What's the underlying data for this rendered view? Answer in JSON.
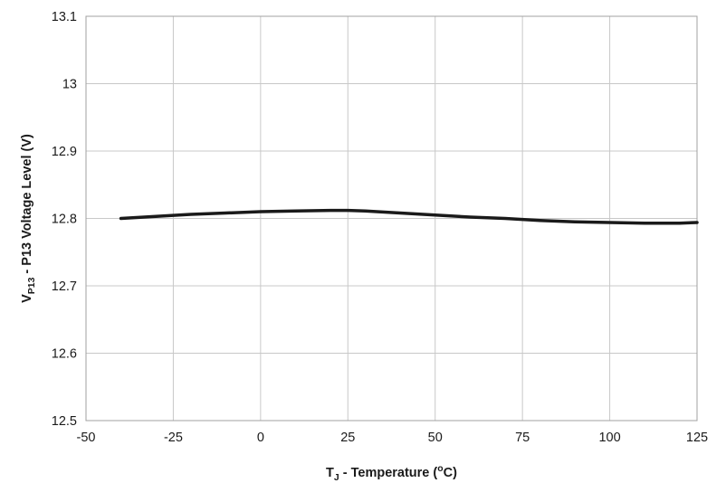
{
  "chart_data": {
    "type": "line",
    "title": "",
    "xlabel": "TJ - Temperature (oC)",
    "ylabel": "VP13 - P13 Voltage Level (V)",
    "xlabel_parts": [
      {
        "t": "T"
      },
      {
        "t": "J",
        "s": "sub"
      },
      {
        "t": " - Temperature ("
      },
      {
        "t": "o",
        "s": "sup"
      },
      {
        "t": "C)"
      }
    ],
    "ylabel_parts": [
      {
        "t": "V"
      },
      {
        "t": "P13",
        "s": "sub"
      },
      {
        "t": " - P13 Voltage Level (V)"
      }
    ],
    "xlim": [
      -50,
      125
    ],
    "ylim": [
      12.5,
      13.1
    ],
    "x_ticks": [
      -50,
      -25,
      0,
      25,
      50,
      75,
      100,
      125
    ],
    "x_tick_labels": [
      "-50",
      "-25",
      "0",
      "25",
      "50",
      "75",
      "100",
      "125"
    ],
    "y_ticks": [
      12.5,
      12.6,
      12.7,
      12.8,
      12.9,
      13.0,
      13.1
    ],
    "y_tick_labels": [
      "12.5",
      "12.6",
      "12.7",
      "12.8",
      "12.9",
      "13",
      "13.1"
    ],
    "grid": true,
    "legend": "none",
    "colors": {
      "series": "#1a1a1a",
      "grid": "#c8c8c8",
      "border": "#a0a0a0",
      "background": "#ffffff"
    },
    "series": [
      {
        "name": "VP13 vs TJ",
        "x": [
          -40,
          -30,
          -20,
          -10,
          0,
          10,
          20,
          25,
          30,
          40,
          50,
          60,
          70,
          80,
          90,
          100,
          110,
          120,
          125
        ],
        "y": [
          12.8,
          12.803,
          12.806,
          12.808,
          12.81,
          12.811,
          12.812,
          12.812,
          12.811,
          12.808,
          12.805,
          12.802,
          12.8,
          12.797,
          12.795,
          12.794,
          12.793,
          12.793,
          12.794
        ]
      }
    ]
  }
}
